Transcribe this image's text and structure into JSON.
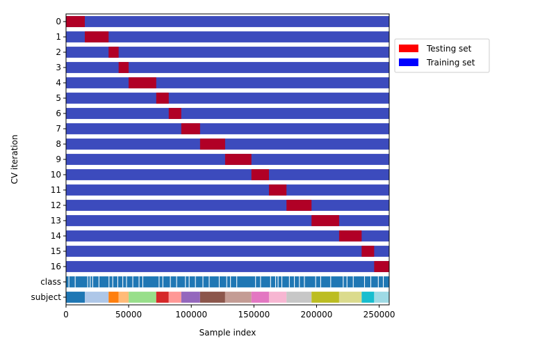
{
  "chart_data": {
    "type": "bar",
    "orientation": "horizontal",
    "xlabel": "Sample index",
    "ylabel": "CV iteration",
    "xlim": [
      0,
      258000
    ],
    "x_ticks": [
      0,
      50000,
      100000,
      150000,
      200000,
      250000
    ],
    "x_tick_labels": [
      "0",
      "50000",
      "100000",
      "150000",
      "200000",
      "250000"
    ],
    "y_tick_labels": [
      "0",
      "1",
      "2",
      "3",
      "4",
      "5",
      "6",
      "7",
      "8",
      "9",
      "10",
      "11",
      "12",
      "13",
      "14",
      "15",
      "16",
      "class",
      "subject"
    ],
    "total_samples": 258000,
    "legend": {
      "placement": "outside-right",
      "entries": [
        {
          "label": "Testing set",
          "color": "#ff0000"
        },
        {
          "label": "Training set",
          "color": "#0000ff"
        }
      ]
    },
    "colors": {
      "training": "#3c4bbd",
      "testing": "#b10026",
      "class": "#1f77b4"
    },
    "series": [
      {
        "iteration": 0,
        "test_start": 0,
        "test_end": 15000
      },
      {
        "iteration": 1,
        "test_start": 15000,
        "test_end": 34000
      },
      {
        "iteration": 2,
        "test_start": 34000,
        "test_end": 42000
      },
      {
        "iteration": 3,
        "test_start": 42000,
        "test_end": 50000
      },
      {
        "iteration": 4,
        "test_start": 50000,
        "test_end": 72000
      },
      {
        "iteration": 5,
        "test_start": 72000,
        "test_end": 82000
      },
      {
        "iteration": 6,
        "test_start": 82000,
        "test_end": 92000
      },
      {
        "iteration": 7,
        "test_start": 92000,
        "test_end": 107000
      },
      {
        "iteration": 8,
        "test_start": 107000,
        "test_end": 127000
      },
      {
        "iteration": 9,
        "test_start": 127000,
        "test_end": 148000
      },
      {
        "iteration": 10,
        "test_start": 148000,
        "test_end": 162000
      },
      {
        "iteration": 11,
        "test_start": 162000,
        "test_end": 176000
      },
      {
        "iteration": 12,
        "test_start": 176000,
        "test_end": 196000
      },
      {
        "iteration": 13,
        "test_start": 196000,
        "test_end": 218000
      },
      {
        "iteration": 14,
        "test_start": 218000,
        "test_end": 236000
      },
      {
        "iteration": 15,
        "test_start": 236000,
        "test_end": 246000
      },
      {
        "iteration": 16,
        "test_start": 246000,
        "test_end": 258000
      }
    ],
    "subject_groups": [
      {
        "start": 0,
        "end": 15000,
        "color": "#1f77b4"
      },
      {
        "start": 15000,
        "end": 34000,
        "color": "#aec7e8"
      },
      {
        "start": 34000,
        "end": 42000,
        "color": "#ff7f0e"
      },
      {
        "start": 42000,
        "end": 50000,
        "color": "#ffbb78"
      },
      {
        "start": 50000,
        "end": 72000,
        "color": "#98df8a"
      },
      {
        "start": 72000,
        "end": 82000,
        "color": "#d62728"
      },
      {
        "start": 82000,
        "end": 92000,
        "color": "#ff9896"
      },
      {
        "start": 92000,
        "end": 107000,
        "color": "#9467bd"
      },
      {
        "start": 107000,
        "end": 127000,
        "color": "#8c564b"
      },
      {
        "start": 127000,
        "end": 148000,
        "color": "#c49c94"
      },
      {
        "start": 148000,
        "end": 162000,
        "color": "#e377c2"
      },
      {
        "start": 162000,
        "end": 176000,
        "color": "#f7b6d2"
      },
      {
        "start": 176000,
        "end": 196000,
        "color": "#c7c7c7"
      },
      {
        "start": 196000,
        "end": 218000,
        "color": "#bcbd22"
      },
      {
        "start": 218000,
        "end": 236000,
        "color": "#dbdb8d"
      },
      {
        "start": 236000,
        "end": 246000,
        "color": "#17becf"
      },
      {
        "start": 246000,
        "end": 258000,
        "color": "#9edae5"
      }
    ],
    "class_stripes": [
      2000,
      7000,
      17000,
      19000,
      21000,
      26000,
      34000,
      37000,
      41000,
      45000,
      48000,
      53000,
      58000,
      61000,
      74000,
      77000,
      83000,
      88000,
      95000,
      98000,
      103000,
      109000,
      114000,
      122000,
      128000,
      131000,
      136000,
      151000,
      155000,
      163000,
      167000,
      169000,
      172000,
      178000,
      182000,
      186000,
      190000,
      199000,
      203000,
      211000,
      221000,
      224000,
      229000,
      238000,
      243000,
      249000,
      253000
    ]
  }
}
